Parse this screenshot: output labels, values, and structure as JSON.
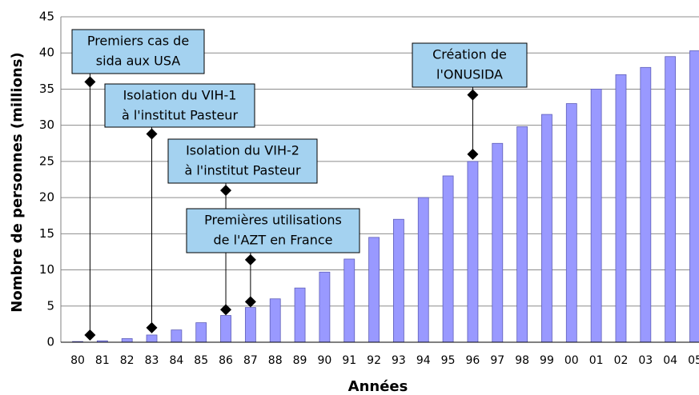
{
  "chart_data": {
    "type": "bar",
    "x_label": "Années",
    "y_label": "Nombre de personnes (millions)",
    "categories": [
      "80",
      "81",
      "82",
      "83",
      "84",
      "85",
      "86",
      "87",
      "88",
      "89",
      "90",
      "91",
      "92",
      "93",
      "94",
      "95",
      "96",
      "97",
      "98",
      "99",
      "00",
      "01",
      "02",
      "03",
      "04",
      "05"
    ],
    "values": [
      0.1,
      0.2,
      0.5,
      1.0,
      1.7,
      2.7,
      3.7,
      4.8,
      6.0,
      7.5,
      9.7,
      11.5,
      14.5,
      17,
      20,
      23,
      25,
      27.5,
      29.8,
      31.5,
      33,
      35,
      37,
      38,
      39.5,
      40.3
    ],
    "color": "#9999ff",
    "ylim": [
      0,
      45
    ],
    "yticks": [
      0,
      5,
      10,
      15,
      20,
      25,
      30,
      35,
      40,
      45
    ],
    "grid": true,
    "annotations": [
      {
        "lines": [
          "Premiers cas de",
          "sida aux USA"
        ],
        "x": 0.5,
        "y": [
          36,
          1
        ]
      },
      {
        "lines": [
          "Isolation du VIH-1",
          "à l'institut Pasteur"
        ],
        "x": 3,
        "y": [
          28.8,
          2
        ]
      },
      {
        "lines": [
          "Isolation du VIH-2",
          "à l'institut Pasteur"
        ],
        "x": 6,
        "y": [
          21,
          4.5
        ]
      },
      {
        "lines": [
          "Premières utilisations",
          "de l'AZT en France"
        ],
        "x": 7,
        "y": [
          11.4,
          5.6
        ]
      },
      {
        "lines": [
          "Création de",
          "l'ONUSIDA"
        ],
        "x": 16,
        "y": [
          34.2,
          26
        ]
      }
    ]
  }
}
